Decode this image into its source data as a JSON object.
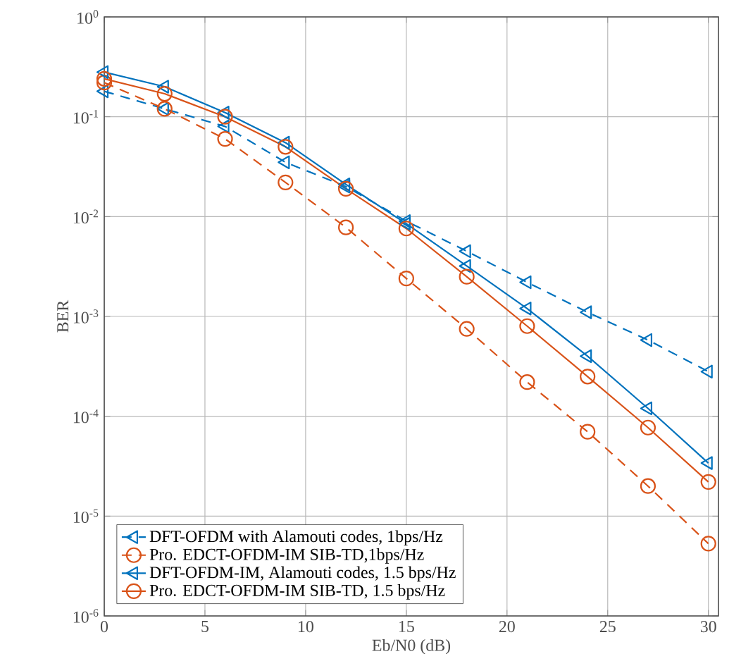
{
  "chart_data": {
    "type": "line",
    "xlabel": "Eb/N0 (dB)",
    "ylabel": "BER",
    "log": "y",
    "grid": true,
    "legend": "bottom left",
    "x": [
      0,
      3,
      6,
      9,
      12,
      15,
      18,
      21,
      24,
      27,
      30
    ],
    "xlim": [
      0,
      30.5
    ],
    "xticks": [
      0,
      5,
      10,
      15,
      20,
      25,
      30
    ],
    "ylim": [
      1e-06,
      1
    ],
    "yticks": [
      {
        "value": 1e-06,
        "label": "10$^{-6}$"
      },
      {
        "value": 1e-05,
        "label": "10$^{-5}$"
      },
      {
        "value": 0.0001,
        "label": "10$^{-4}$"
      },
      {
        "value": 0.001,
        "label": "10$^{-3}$"
      },
      {
        "value": 0.01,
        "label": "10$^{-2}$"
      },
      {
        "value": 0.1,
        "label": "10$^{-1}$"
      },
      {
        "value": 1,
        "label": "10$^{0}$"
      }
    ],
    "series": [
      {
        "name": "DFT-OFDM with Alamouti codes, 1bps/Hz",
        "color": "#0072bd",
        "marker": "triangle",
        "line_style": "dashed",
        "values": [
          0.18,
          0.12,
          0.08,
          0.035,
          0.02,
          0.009,
          0.0045,
          0.0022,
          0.0011,
          0.00058,
          0.00028
        ]
      },
      {
        "name": "Pro. EDCT-OFDM-IM SIB-TD,1bps/Hz",
        "color": "#d95319",
        "marker": "circle",
        "line_style": "dashed",
        "values": [
          0.22,
          0.12,
          0.06,
          0.022,
          0.0078,
          0.0024,
          0.00075,
          0.00022,
          7e-05,
          2e-05,
          5.3e-06
        ]
      },
      {
        "name": "DFT-OFDM-IM, Alamouti codes, 1.5 bps/Hz",
        "color": "#0072bd",
        "marker": "triangle",
        "line_style": "solid",
        "values": [
          0.28,
          0.2,
          0.11,
          0.055,
          0.021,
          0.0085,
          0.0032,
          0.0012,
          0.0004,
          0.00012,
          3.4e-05
        ]
      },
      {
        "name": "Pro. EDCT-OFDM-IM SIB-TD, 1.5 bps/Hz",
        "color": "#d95319",
        "marker": "circle",
        "line_style": "solid",
        "values": [
          0.24,
          0.17,
          0.1,
          0.05,
          0.019,
          0.0076,
          0.0025,
          0.0008,
          0.00025,
          7.7e-05,
          2.2e-05
        ]
      }
    ]
  }
}
